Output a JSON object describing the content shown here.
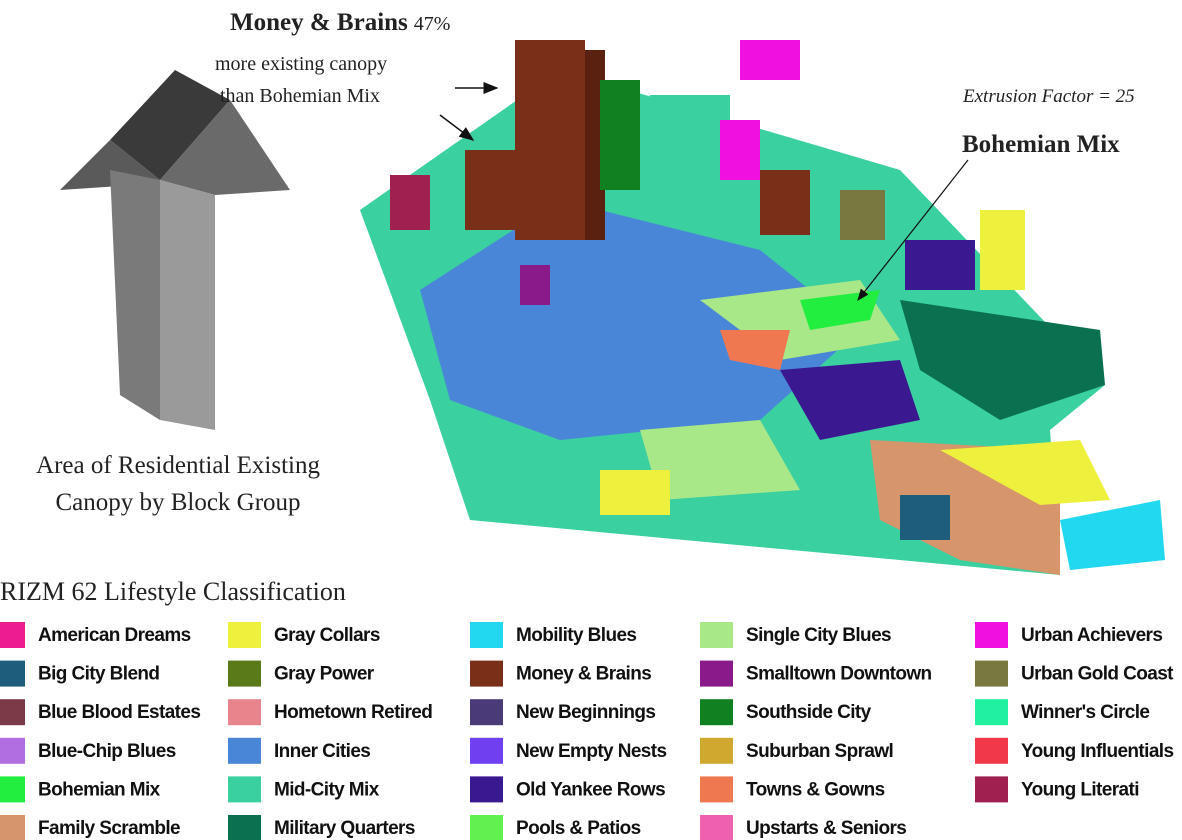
{
  "annotations": {
    "money_brains": {
      "title": "Money & Brains",
      "percent": "47%",
      "line1": "more existing canopy",
      "line2": "than Bohemian Mix"
    },
    "extrusion": "Extrusion Factor = 25",
    "bohemian": "Bohemian Mix",
    "arrow_caption": {
      "line1": "Area of Residential Existing",
      "line2": "Canopy by Block Group"
    }
  },
  "legend": {
    "title": "RIZM 62 Lifestyle Classification",
    "items": [
      {
        "name": "American Dreams",
        "color": "#ec1d8e"
      },
      {
        "name": "Big City Blend",
        "color": "#1f5d7c"
      },
      {
        "name": "Blue Blood Estates",
        "color": "#7c3a48"
      },
      {
        "name": "Blue-Chip Blues",
        "color": "#b06ee0"
      },
      {
        "name": "Bohemian Mix",
        "color": "#22ee40"
      },
      {
        "name": "Family Scramble",
        "color": "#d6956a"
      },
      {
        "name": "Gray Collars",
        "color": "#eef03e"
      },
      {
        "name": "Gray Power",
        "color": "#5a7a1a"
      },
      {
        "name": "Hometown Retired",
        "color": "#e8848c"
      },
      {
        "name": "Inner Cities",
        "color": "#4a86d8"
      },
      {
        "name": "Mid-City Mix",
        "color": "#3ad0a0"
      },
      {
        "name": "Military Quarters",
        "color": "#0a7050"
      },
      {
        "name": "Mobility Blues",
        "color": "#22d8f0"
      },
      {
        "name": "Money & Brains",
        "color": "#7a3018"
      },
      {
        "name": "New Beginnings",
        "color": "#4a3a78"
      },
      {
        "name": "New Empty Nests",
        "color": "#7040f0"
      },
      {
        "name": "Old Yankee Rows",
        "color": "#3a1890"
      },
      {
        "name": "Pools & Patios",
        "color": "#60f050"
      },
      {
        "name": "Single City Blues",
        "color": "#a8e888"
      },
      {
        "name": "Smalltown Downtown",
        "color": "#8a1a8a"
      },
      {
        "name": "Southside City",
        "color": "#108020"
      },
      {
        "name": "Suburban Sprawl",
        "color": "#d0a830"
      },
      {
        "name": "Towns & Gowns",
        "color": "#f07850"
      },
      {
        "name": "Upstarts & Seniors",
        "color": "#f060b0"
      },
      {
        "name": "Urban Achievers",
        "color": "#f010e0"
      },
      {
        "name": "Urban Gold Coast",
        "color": "#787840"
      },
      {
        "name": "Winner's Circle",
        "color": "#20f0a0"
      },
      {
        "name": "Young Influentials",
        "color": "#f03848"
      },
      {
        "name": "Young Literati",
        "color": "#a02050"
      }
    ]
  }
}
